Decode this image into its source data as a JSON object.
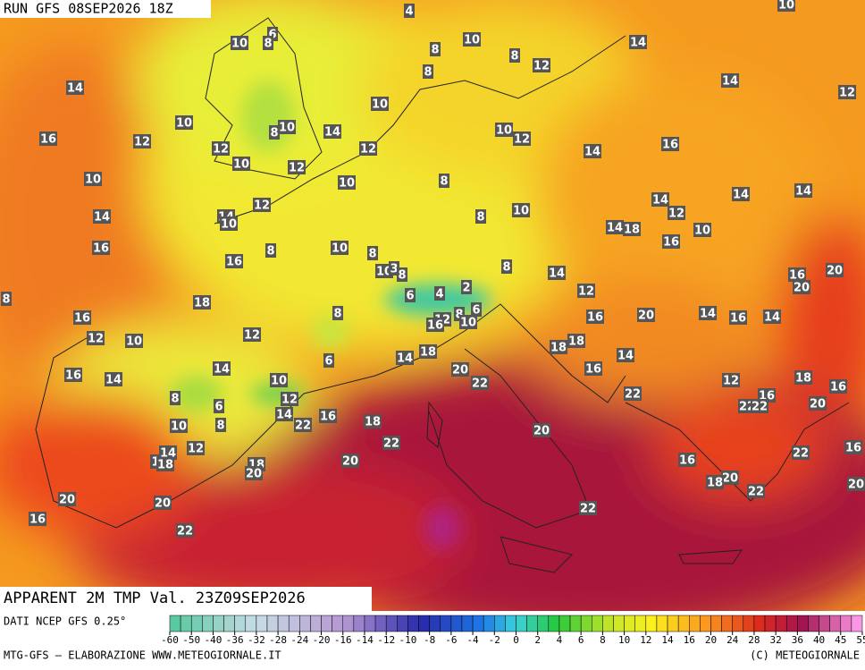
{
  "header": {
    "run": "RUN GFS 08SEP2026 18Z",
    "title": "APPARENT 2M TMP Val. 23Z09SEP2026"
  },
  "map_labels": [
    4,
    10,
    6,
    10,
    8,
    8,
    10,
    8,
    12,
    14,
    8,
    14,
    14,
    12,
    10,
    10,
    14,
    10,
    8,
    10,
    12,
    16,
    12,
    12,
    12,
    16,
    14,
    10,
    12,
    10,
    10,
    8,
    14,
    14,
    14,
    12,
    8,
    10,
    12,
    14,
    14,
    10,
    14,
    18,
    10,
    16,
    16,
    10,
    8,
    8,
    16,
    8,
    10,
    3,
    8,
    14,
    16,
    20,
    20,
    8,
    12,
    18,
    6,
    4,
    2,
    16,
    6,
    8,
    8,
    16,
    20,
    14,
    16,
    14,
    12,
    16,
    10,
    12,
    10,
    12,
    18,
    18,
    18,
    14,
    6,
    14,
    20,
    16,
    14,
    16,
    14,
    10,
    22,
    18,
    12,
    16,
    22,
    16,
    8,
    6,
    12,
    22,
    22,
    20,
    14,
    16,
    8,
    10,
    22,
    18,
    22,
    20,
    12,
    14,
    1,
    18,
    16,
    22,
    18,
    20,
    20,
    16,
    20,
    18,
    20,
    22,
    20,
    20,
    22,
    16,
    22
  ],
  "colorbar": {
    "ticks": [
      -60,
      -50,
      -40,
      -36,
      -32,
      -28,
      -24,
      -20,
      -16,
      -14,
      -12,
      -10,
      -8,
      -6,
      -4,
      -2,
      0,
      2,
      4,
      6,
      8,
      10,
      12,
      14,
      16,
      20,
      24,
      28,
      32,
      36,
      40,
      45,
      55
    ]
  },
  "footer": {
    "source": "DATI NCEP GFS 0.25°",
    "credit": "MTG-GFS — ELABORAZIONE WWW.METEOGIORNALE.IT",
    "copyright": "(C) METEOGIORNALE"
  }
}
